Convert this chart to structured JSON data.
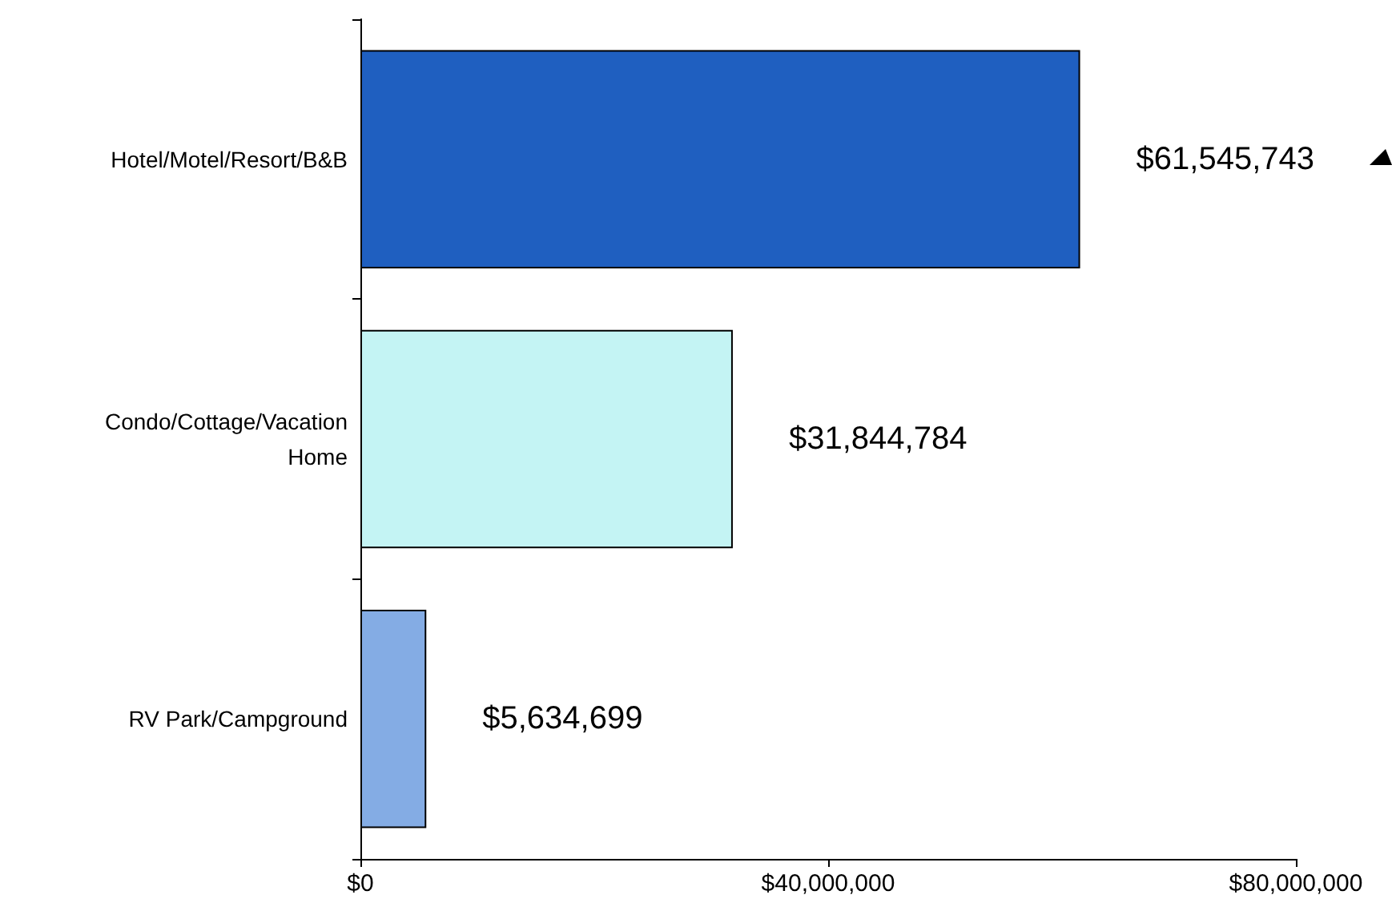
{
  "chart_data": {
    "type": "bar",
    "orientation": "horizontal",
    "categories": [
      "Hotel/Motel/Resort/B&B",
      "Condo/Cottage/Vacation\nHome",
      "RV Park/Campground"
    ],
    "values": [
      61545743,
      31844784,
      5634699
    ],
    "colors": [
      "#1f5fc0",
      "#c4f4f4",
      "#84ace4"
    ],
    "value_labels": [
      "$61,545,743",
      "$31,844,784",
      "$5,634,699"
    ],
    "xlim": [
      0,
      80000000
    ],
    "xticks": [
      {
        "value": 0,
        "label": "$0"
      },
      {
        "value": 40000000,
        "label": "$40,000,000"
      },
      {
        "value": 80000000,
        "label": "$80,000,000"
      }
    ],
    "grid": false
  }
}
